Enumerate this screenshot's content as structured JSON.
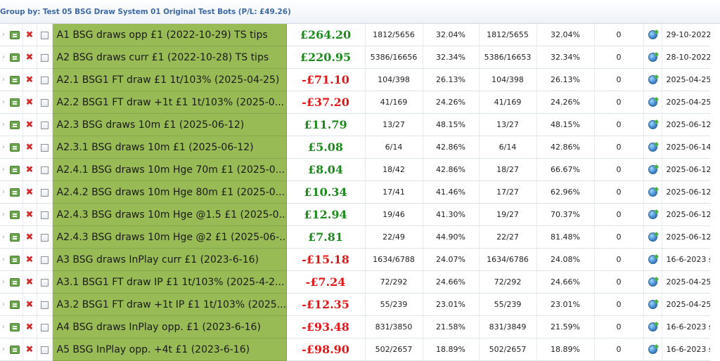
{
  "group": {
    "title": "Group by: Test 05 BSG Draw System 01 Original Test Bots (P/L: £49.26)"
  },
  "rows": [
    {
      "name": "A1 BSG draws opp £1 (2022-10-29) TS tips",
      "pl": "£264.20",
      "sign": "pos",
      "c1": "1812/5656",
      "p1": "32.04%",
      "c2": "1812/5655",
      "p2": "32.04%",
      "zero": "0",
      "date": "29-10-2022 ..."
    },
    {
      "name": "A2 BSG draws curr £1 (2022-10-28) TS tips",
      "pl": "£220.95",
      "sign": "pos",
      "c1": "5386/16656",
      "p1": "32.34%",
      "c2": "5386/16653",
      "p2": "32.34%",
      "zero": "0",
      "date": "28-10-2022 ..."
    },
    {
      "name": "A2.1 BSG1 FT draw £1 1t/103% (2025-04-25)",
      "pl": "-£71.10",
      "sign": "neg",
      "c1": "104/398",
      "p1": "26.13%",
      "c2": "104/398",
      "p2": "26.13%",
      "zero": "0",
      "date": "2025-04-25"
    },
    {
      "name": "A2.2 BSG1 FT draw +1t £1 1t/103% (2025-0...",
      "pl": "-£37.20",
      "sign": "neg",
      "c1": "41/169",
      "p1": "24.26%",
      "c2": "41/169",
      "p2": "24.26%",
      "zero": "0",
      "date": "2025-04-25"
    },
    {
      "name": "A2.3 BSG draws 10m £1 (2025-06-12)",
      "pl": "£11.79",
      "sign": "pos",
      "c1": "13/27",
      "p1": "48.15%",
      "c2": "13/27",
      "p2": "48.15%",
      "zero": "0",
      "date": "2025-06-12 ..."
    },
    {
      "name": "A2.3.1 BSG draws 10m £1 (2025-06-12)",
      "pl": "£5.08",
      "sign": "pos",
      "c1": "6/14",
      "p1": "42.86%",
      "c2": "6/14",
      "p2": "42.86%",
      "zero": "0",
      "date": "2025-06-14 ..."
    },
    {
      "name": "A2.4.1 BSG draws 10m Hge 70m £1 (2025-0...",
      "pl": "£8.04",
      "sign": "pos",
      "c1": "18/42",
      "p1": "42.86%",
      "c2": "18/27",
      "p2": "66.67%",
      "zero": "0",
      "date": "2025-06-12 ..."
    },
    {
      "name": "A2.4.2 BSG draws 10m Hge 80m £1 (2025-0...",
      "pl": "£10.34",
      "sign": "pos",
      "c1": "17/41",
      "p1": "41.46%",
      "c2": "17/27",
      "p2": "62.96%",
      "zero": "0",
      "date": "2025-06-12 ..."
    },
    {
      "name": "A2.4.3 BSG draws 10m Hge @1.5 £1 (2025-0...",
      "pl": "£12.94",
      "sign": "pos",
      "c1": "19/46",
      "p1": "41.30%",
      "c2": "19/27",
      "p2": "70.37%",
      "zero": "0",
      "date": "2025-06-12 ..."
    },
    {
      "name": "A2.4.3 BSG draws 10m Hge @2 £1 (2025-06-...",
      "pl": "£7.81",
      "sign": "pos",
      "c1": "22/49",
      "p1": "44.90%",
      "c2": "22/27",
      "p2": "81.48%",
      "zero": "0",
      "date": "2025-06-12 ..."
    },
    {
      "name": "A3 BSG draws InPlay curr £1 (2023-6-16)",
      "pl": "-£15.18",
      "sign": "neg",
      "c1": "1634/6788",
      "p1": "24.07%",
      "c2": "1634/6786",
      "p2": "24.08%",
      "zero": "0",
      "date": "16-6-2023 s..."
    },
    {
      "name": "A3.1 BSG1 FT draw IP £1 1t/103% (2025-4-2...",
      "pl": "-£7.24",
      "sign": "neg",
      "c1": "72/292",
      "p1": "24.66%",
      "c2": "72/292",
      "p2": "24.66%",
      "zero": "0",
      "date": "2025-04-25"
    },
    {
      "name": "A3.2 BSG1 FT draw +1t IP £1 1t/103% (2025...",
      "pl": "-£12.35",
      "sign": "neg",
      "c1": "55/239",
      "p1": "23.01%",
      "c2": "55/239",
      "p2": "23.01%",
      "zero": "0",
      "date": "2025-04-25"
    },
    {
      "name": "A4 BSG draws InPlay opp. £1 (2023-6-16)",
      "pl": "-£93.48",
      "sign": "neg",
      "c1": "831/3850",
      "p1": "21.58%",
      "c2": "831/3849",
      "p2": "21.59%",
      "zero": "0",
      "date": "16-6-2023 s..."
    },
    {
      "name": "A5 BSG InPlay opp. +4t  £1 (2023-6-16)",
      "pl": "-£98.90",
      "sign": "neg",
      "c1": "502/2657",
      "p1": "18.89%",
      "c2": "502/2657",
      "p2": "18.89%",
      "zero": "0",
      "date": "16-6-2023 s..."
    }
  ],
  "icons": {
    "bot": "bot-edit-icon",
    "delete": "delete-x-icon",
    "refresh": "refresh-icon"
  },
  "colors": {
    "name_bg": "#99bb55",
    "positive": "#1e8a1e",
    "negative": "#e01818",
    "header_text": "#3e6aa3"
  }
}
